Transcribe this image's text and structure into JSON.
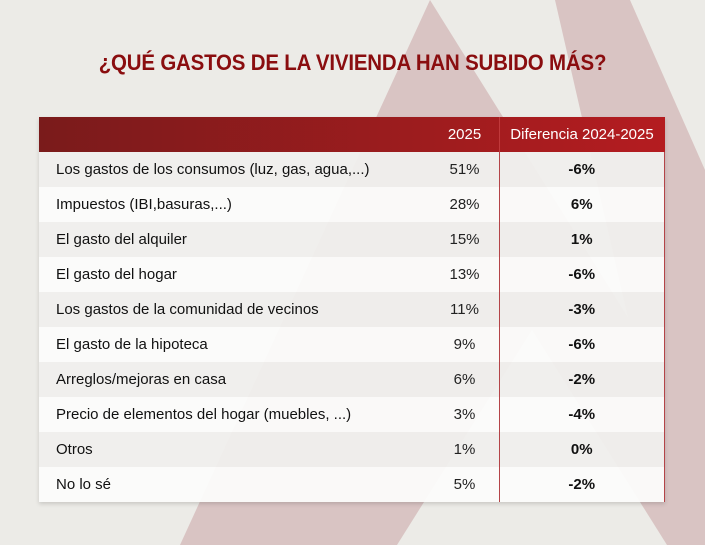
{
  "colors": {
    "title": "#8a0d0f",
    "header_start": "#7a1b1b",
    "header_end": "#b41c20",
    "background": "#ecebe7",
    "shape": "#d9c4c3"
  },
  "chart_data": {
    "type": "table",
    "title": "¿QUÉ GASTOS DE LA VIVIENDA HAN SUBIDO MÁS?",
    "columns": [
      "",
      "2025",
      "Diferencia 2024-2025"
    ],
    "rows": [
      {
        "label": "Los gastos de los consumos (luz, gas, agua,...)",
        "value": "51%",
        "diff": "-6%"
      },
      {
        "label": "Impuestos (IBI,basuras,...)",
        "value": "28%",
        "diff": "6%"
      },
      {
        "label": "El gasto del alquiler",
        "value": "15%",
        "diff": "1%"
      },
      {
        "label": "El gasto del hogar",
        "value": "13%",
        "diff": "-6%"
      },
      {
        "label": "Los gastos de la comunidad de vecinos",
        "value": "11%",
        "diff": "-3%"
      },
      {
        "label": "El gasto de la hipoteca",
        "value": "9%",
        "diff": "-6%"
      },
      {
        "label": "Arreglos/mejoras en casa",
        "value": "6%",
        "diff": "-2%"
      },
      {
        "label": "Precio de elementos del hogar (muebles, ...)",
        "value": "3%",
        "diff": "-4%"
      },
      {
        "label": "Otros",
        "value": "1%",
        "diff": "0%"
      },
      {
        "label": "No lo sé",
        "value": "5%",
        "diff": "-2%"
      }
    ]
  }
}
